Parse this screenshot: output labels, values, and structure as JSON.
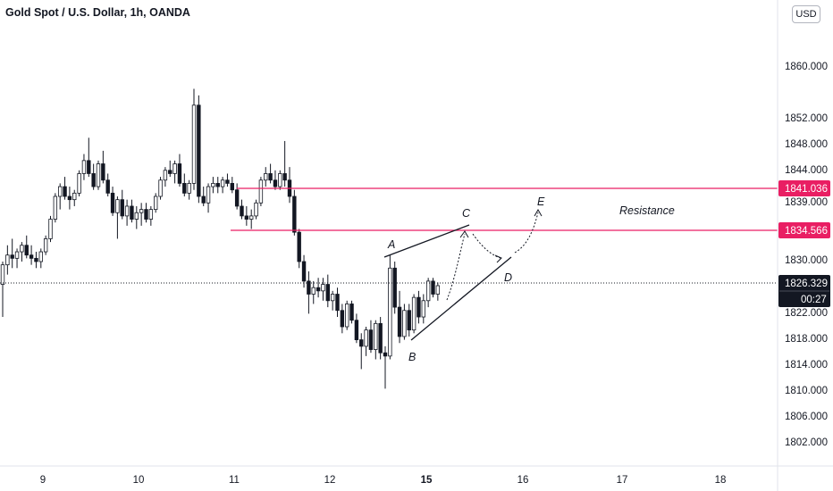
{
  "header": {
    "title": "Gold Spot / U.S. Dollar, 1h, OANDA",
    "currency_button": "USD"
  },
  "colors": {
    "candle": "#131722",
    "resistance_line": "#e91e63",
    "price_tag_bg": "#131722",
    "level_tag_bg": "#e91e63",
    "axis_line": "#e0e3eb"
  },
  "chart_data": {
    "type": "candlestick",
    "title": "Gold Spot / U.S. Dollar, 1h, OANDA",
    "y_axis": {
      "ticks": [
        "1802.000",
        "1806.000",
        "1810.000",
        "1814.000",
        "1818.000",
        "1822.000",
        "1826.329",
        "1830.000",
        "1834.566",
        "1839.000",
        "1841.036",
        "1844.000",
        "1848.000",
        "1852.000",
        "1860.000"
      ],
      "ylim": [
        1798.5,
        1862
      ]
    },
    "x_axis": {
      "ticks": [
        {
          "label": "9",
          "bold": false
        },
        {
          "label": "10",
          "bold": false
        },
        {
          "label": "11",
          "bold": false
        },
        {
          "label": "12",
          "bold": false
        },
        {
          "label": "15",
          "bold": true
        },
        {
          "label": "16",
          "bold": false
        },
        {
          "label": "17",
          "bold": false
        },
        {
          "label": "18",
          "bold": false
        }
      ]
    },
    "current_price": "1826.329",
    "countdown": "00:27",
    "levels": [
      {
        "value": "1841.036",
        "label": ""
      },
      {
        "value": "1834.566",
        "label": "Resistance"
      }
    ],
    "pattern_points": [
      "A",
      "B",
      "C",
      "D",
      "E"
    ],
    "candles": [
      [
        1826.5,
        1830.0,
        1821.5,
        1829.5
      ],
      [
        1829.5,
        1832.5,
        1828.0,
        1831.0
      ],
      [
        1831.0,
        1833.5,
        1829.0,
        1830.5
      ],
      [
        1830.5,
        1832.0,
        1829.0,
        1831.5
      ],
      [
        1831.5,
        1833.0,
        1830.0,
        1832.5
      ],
      [
        1832.5,
        1834.0,
        1830.5,
        1831.0
      ],
      [
        1831.0,
        1832.5,
        1829.5,
        1830.5
      ],
      [
        1830.5,
        1831.5,
        1829.0,
        1830.0
      ],
      [
        1830.0,
        1832.0,
        1829.0,
        1831.5
      ],
      [
        1831.5,
        1834.0,
        1831.0,
        1833.5
      ],
      [
        1833.5,
        1837.0,
        1833.0,
        1836.5
      ],
      [
        1836.5,
        1840.5,
        1836.0,
        1840.0
      ],
      [
        1840.0,
        1842.0,
        1838.0,
        1841.5
      ],
      [
        1841.5,
        1843.0,
        1839.5,
        1840.0
      ],
      [
        1840.0,
        1841.5,
        1838.0,
        1839.5
      ],
      [
        1839.5,
        1841.0,
        1838.5,
        1840.5
      ],
      [
        1840.5,
        1844.0,
        1840.0,
        1843.5
      ],
      [
        1843.5,
        1846.5,
        1842.5,
        1845.5
      ],
      [
        1845.5,
        1849.0,
        1843.0,
        1843.5
      ],
      [
        1843.5,
        1845.0,
        1841.0,
        1841.5
      ],
      [
        1841.5,
        1845.5,
        1841.0,
        1845.0
      ],
      [
        1845.0,
        1847.0,
        1842.0,
        1842.5
      ],
      [
        1842.5,
        1843.5,
        1840.0,
        1840.5
      ],
      [
        1840.5,
        1841.5,
        1837.0,
        1837.5
      ],
      [
        1837.5,
        1840.0,
        1833.5,
        1839.5
      ],
      [
        1839.5,
        1841.0,
        1836.5,
        1837.0
      ],
      [
        1837.0,
        1839.5,
        1835.5,
        1838.5
      ],
      [
        1838.5,
        1839.5,
        1836.0,
        1836.5
      ],
      [
        1836.5,
        1838.5,
        1835.0,
        1837.5
      ],
      [
        1837.5,
        1839.0,
        1835.5,
        1838.0
      ],
      [
        1838.0,
        1839.0,
        1836.0,
        1836.5
      ],
      [
        1836.5,
        1838.5,
        1835.5,
        1838.0
      ],
      [
        1838.0,
        1840.5,
        1837.5,
        1840.0
      ],
      [
        1840.0,
        1843.0,
        1839.5,
        1842.5
      ],
      [
        1842.5,
        1844.5,
        1841.5,
        1844.0
      ],
      [
        1844.0,
        1845.5,
        1843.0,
        1843.5
      ],
      [
        1843.5,
        1845.5,
        1842.0,
        1845.0
      ],
      [
        1845.0,
        1846.5,
        1841.5,
        1842.0
      ],
      [
        1842.0,
        1843.5,
        1840.0,
        1840.5
      ],
      [
        1840.5,
        1842.5,
        1839.5,
        1842.0
      ],
      [
        1842.0,
        1856.5,
        1841.0,
        1854.0
      ],
      [
        1854.0,
        1855.5,
        1839.0,
        1840.0
      ],
      [
        1840.0,
        1841.5,
        1838.5,
        1839.0
      ],
      [
        1839.0,
        1842.0,
        1837.5,
        1841.5
      ],
      [
        1841.5,
        1843.0,
        1840.5,
        1842.0
      ],
      [
        1842.0,
        1843.0,
        1840.5,
        1841.5
      ],
      [
        1841.5,
        1843.0,
        1840.5,
        1842.5
      ],
      [
        1842.5,
        1843.5,
        1841.5,
        1842.0
      ],
      [
        1842.0,
        1843.0,
        1840.5,
        1841.0
      ],
      [
        1841.0,
        1842.0,
        1838.0,
        1838.5
      ],
      [
        1838.5,
        1839.5,
        1836.5,
        1837.0
      ],
      [
        1837.0,
        1838.5,
        1835.5,
        1836.5
      ],
      [
        1836.5,
        1838.0,
        1835.0,
        1837.0
      ],
      [
        1837.0,
        1839.5,
        1836.5,
        1839.0
      ],
      [
        1839.0,
        1843.0,
        1838.5,
        1842.5
      ],
      [
        1842.5,
        1844.5,
        1841.5,
        1843.5
      ],
      [
        1843.5,
        1845.0,
        1842.0,
        1842.5
      ],
      [
        1842.5,
        1844.0,
        1841.0,
        1841.5
      ],
      [
        1841.5,
        1844.0,
        1841.0,
        1843.5
      ],
      [
        1843.5,
        1848.5,
        1841.5,
        1842.5
      ],
      [
        1842.5,
        1844.5,
        1839.0,
        1840.0
      ],
      [
        1840.0,
        1841.0,
        1834.0,
        1834.5
      ],
      [
        1834.5,
        1835.0,
        1829.0,
        1830.0
      ],
      [
        1830.0,
        1831.0,
        1826.0,
        1827.0
      ],
      [
        1827.0,
        1828.5,
        1822.0,
        1825.0
      ],
      [
        1825.0,
        1827.0,
        1823.5,
        1826.0
      ],
      [
        1826.0,
        1827.5,
        1824.5,
        1825.5
      ],
      [
        1825.5,
        1827.5,
        1824.0,
        1826.5
      ],
      [
        1826.5,
        1828.0,
        1823.0,
        1824.0
      ],
      [
        1824.0,
        1825.5,
        1822.5,
        1825.0
      ],
      [
        1825.0,
        1826.0,
        1821.5,
        1822.5
      ],
      [
        1822.5,
        1823.5,
        1819.0,
        1820.0
      ],
      [
        1820.0,
        1824.0,
        1819.5,
        1823.5
      ],
      [
        1823.5,
        1824.0,
        1820.5,
        1821.0
      ],
      [
        1821.0,
        1822.0,
        1817.5,
        1818.0
      ],
      [
        1818.0,
        1819.0,
        1813.5,
        1817.0
      ],
      [
        1817.0,
        1820.0,
        1815.5,
        1819.5
      ],
      [
        1819.5,
        1821.0,
        1816.0,
        1816.5
      ],
      [
        1816.5,
        1821.0,
        1815.0,
        1820.5
      ],
      [
        1820.5,
        1821.5,
        1815.0,
        1816.0
      ],
      [
        1816.0,
        1817.0,
        1810.5,
        1815.5
      ],
      [
        1815.5,
        1831.0,
        1815.0,
        1829.0
      ],
      [
        1829.0,
        1830.0,
        1822.0,
        1823.0
      ],
      [
        1823.0,
        1825.5,
        1817.5,
        1818.5
      ],
      [
        1818.5,
        1823.5,
        1818.0,
        1822.5
      ],
      [
        1822.5,
        1823.5,
        1818.5,
        1819.5
      ],
      [
        1819.5,
        1825.0,
        1819.0,
        1824.5
      ],
      [
        1824.5,
        1825.5,
        1820.5,
        1821.5
      ],
      [
        1821.5,
        1825.0,
        1820.5,
        1824.0
      ],
      [
        1824.0,
        1827.5,
        1823.0,
        1827.0
      ],
      [
        1827.0,
        1827.5,
        1824.5,
        1825.0
      ],
      [
        1825.0,
        1826.8,
        1824.0,
        1826.3
      ]
    ]
  }
}
